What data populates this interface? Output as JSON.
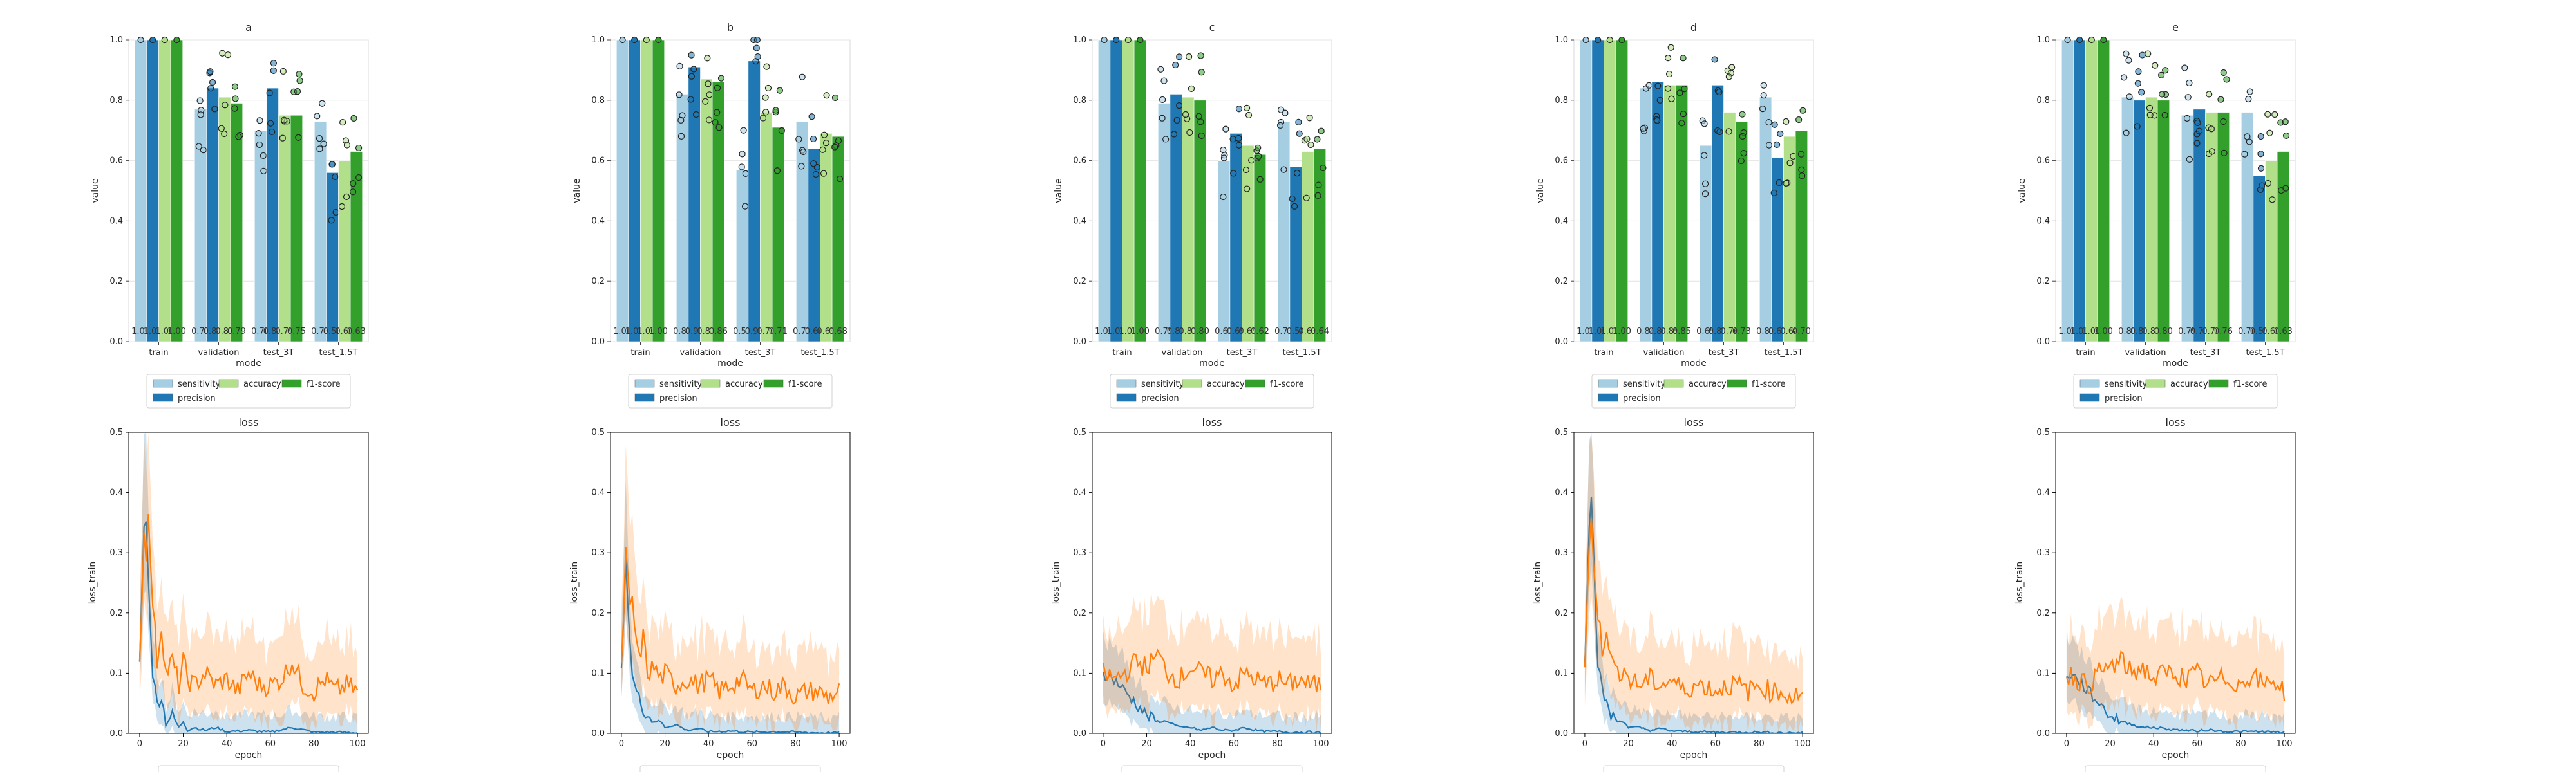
{
  "chart_data": [
    {
      "type": "bar",
      "title": "a",
      "xlabel": "mode",
      "ylabel": "value",
      "ylim": [
        0,
        1
      ],
      "categories": [
        "train",
        "validation",
        "test_3T",
        "test_1.5T"
      ],
      "series": [
        {
          "name": "sensitivity",
          "values": [
            1.0,
            0.77,
            0.7,
            0.73
          ]
        },
        {
          "name": "precision",
          "values": [
            1.0,
            0.84,
            0.84,
            0.56
          ]
        },
        {
          "name": "accuracy",
          "values": [
            1.0,
            0.81,
            0.75,
            0.6
          ]
        },
        {
          "name": "f1-score",
          "values": [
            1.0,
            0.79,
            0.75,
            0.63
          ]
        }
      ],
      "bar_labels": [
        [
          "1.00",
          "1.00",
          "1.00",
          "1.00"
        ],
        [
          "0.77",
          "0.84",
          "0.81",
          "0.79"
        ],
        [
          "0.70",
          "0.84",
          "0.75",
          "0.75"
        ],
        [
          "0.73",
          "0.56",
          "0.60",
          "0.63"
        ]
      ]
    },
    {
      "type": "bar",
      "title": "b",
      "xlabel": "mode",
      "ylabel": "value",
      "ylim": [
        0,
        1
      ],
      "categories": [
        "train",
        "validation",
        "test_3T",
        "test_1.5T"
      ],
      "series": [
        {
          "name": "sensitivity",
          "values": [
            1.0,
            0.82,
            0.57,
            0.73
          ]
        },
        {
          "name": "precision",
          "values": [
            1.0,
            0.91,
            0.93,
            0.64
          ]
        },
        {
          "name": "accuracy",
          "values": [
            1.0,
            0.87,
            0.76,
            0.69
          ]
        },
        {
          "name": "f1-score",
          "values": [
            1.0,
            0.86,
            0.71,
            0.68
          ]
        }
      ],
      "bar_labels": [
        [
          "1.00",
          "1.00",
          "1.00",
          "1.00"
        ],
        [
          "0.82",
          "0.91",
          "0.87",
          "0.86"
        ],
        [
          "0.57",
          "0.93",
          "0.76",
          "0.71"
        ],
        [
          "0.73",
          "0.64",
          "0.69",
          "0.68"
        ]
      ]
    },
    {
      "type": "bar",
      "title": "c",
      "xlabel": "mode",
      "ylabel": "value",
      "ylim": [
        0,
        1
      ],
      "categories": [
        "train",
        "validation",
        "test_3T",
        "test_1.5T"
      ],
      "series": [
        {
          "name": "sensitivity",
          "values": [
            1.0,
            0.79,
            0.6,
            0.73
          ]
        },
        {
          "name": "precision",
          "values": [
            1.0,
            0.82,
            0.69,
            0.58
          ]
        },
        {
          "name": "accuracy",
          "values": [
            1.0,
            0.81,
            0.65,
            0.63
          ]
        },
        {
          "name": "f1-score",
          "values": [
            1.0,
            0.8,
            0.62,
            0.64
          ]
        }
      ],
      "bar_labels": [
        [
          "1.00",
          "1.00",
          "1.00",
          "1.00"
        ],
        [
          "0.79",
          "0.82",
          "0.81",
          "0.80"
        ],
        [
          "0.60",
          "0.69",
          "0.65",
          "0.62"
        ],
        [
          "0.73",
          "0.58",
          "0.63",
          "0.64"
        ]
      ]
    },
    {
      "type": "bar",
      "title": "d",
      "xlabel": "mode",
      "ylabel": "value",
      "ylim": [
        0,
        1
      ],
      "categories": [
        "train",
        "validation",
        "test_3T",
        "test_1.5T"
      ],
      "series": [
        {
          "name": "sensitivity",
          "values": [
            1.0,
            0.84,
            0.65,
            0.81
          ]
        },
        {
          "name": "precision",
          "values": [
            1.0,
            0.86,
            0.85,
            0.61
          ]
        },
        {
          "name": "accuracy",
          "values": [
            1.0,
            0.85,
            0.76,
            0.68
          ]
        },
        {
          "name": "f1-score",
          "values": [
            1.0,
            0.85,
            0.73,
            0.7
          ]
        }
      ],
      "bar_labels": [
        [
          "1.00",
          "1.00",
          "1.00",
          "1.00"
        ],
        [
          "0.84",
          "0.86",
          "0.85",
          "0.85"
        ],
        [
          "0.65",
          "0.85",
          "0.76",
          "0.73"
        ],
        [
          "0.81",
          "0.61",
          "0.68",
          "0.70"
        ]
      ]
    },
    {
      "type": "bar",
      "title": "e",
      "xlabel": "mode",
      "ylabel": "value",
      "ylim": [
        0,
        1
      ],
      "categories": [
        "train",
        "validation",
        "test_3T",
        "test_1.5T"
      ],
      "series": [
        {
          "name": "sensitivity",
          "values": [
            1.0,
            0.81,
            0.75,
            0.76
          ]
        },
        {
          "name": "precision",
          "values": [
            1.0,
            0.8,
            0.77,
            0.55
          ]
        },
        {
          "name": "accuracy",
          "values": [
            1.0,
            0.81,
            0.76,
            0.6
          ]
        },
        {
          "name": "f1-score",
          "values": [
            1.0,
            0.8,
            0.76,
            0.63
          ]
        }
      ],
      "bar_labels": [
        [
          "1.00",
          "1.00",
          "1.00",
          "1.00"
        ],
        [
          "0.81",
          "0.80",
          "0.81",
          "0.80"
        ],
        [
          "0.75",
          "0.77",
          "0.76",
          "0.76"
        ],
        [
          "0.76",
          "0.55",
          "0.60",
          "0.63"
        ]
      ]
    },
    {
      "type": "line",
      "title": "loss",
      "xlabel": "epoch",
      "ylabel": "loss_train",
      "ylim": [
        0,
        0.5
      ],
      "xlim": [
        -5,
        105
      ],
      "series": [
        {
          "name": "",
          "color": "#1f77b4",
          "x": [
            0,
            2,
            3,
            4,
            5,
            6,
            8,
            10,
            12,
            15,
            18,
            20,
            22,
            25,
            30,
            35,
            40,
            50,
            60,
            70,
            80,
            90,
            100
          ],
          "y": [
            0.12,
            0.34,
            0.36,
            0.25,
            0.18,
            0.1,
            0.05,
            0.06,
            0.02,
            0.03,
            0.01,
            0.02,
            0.005,
            0.01,
            0.005,
            0.01,
            0.003,
            0.005,
            0.002,
            0.01,
            0.002,
            0.002,
            0.001
          ]
        },
        {
          "name": "",
          "color": "#ff7f0e",
          "x": [
            0,
            2,
            3,
            4,
            5,
            6,
            8,
            10,
            12,
            15,
            18,
            20,
            22,
            25,
            30,
            35,
            40,
            45,
            50,
            55,
            60,
            65,
            70,
            75,
            80,
            85,
            90,
            95,
            100
          ],
          "y": [
            0.12,
            0.33,
            0.3,
            0.38,
            0.27,
            0.22,
            0.12,
            0.18,
            0.1,
            0.12,
            0.08,
            0.12,
            0.09,
            0.08,
            0.1,
            0.08,
            0.09,
            0.07,
            0.1,
            0.08,
            0.08,
            0.09,
            0.12,
            0.08,
            0.07,
            0.09,
            0.07,
            0.08,
            0.07
          ]
        }
      ]
    },
    {
      "type": "line",
      "title": "loss",
      "xlabel": "epoch",
      "ylabel": "loss_train",
      "ylim": [
        0,
        0.5
      ],
      "xlim": [
        -5,
        105
      ],
      "series": [
        {
          "name": "",
          "color": "#1f77b4",
          "x": [
            0,
            2,
            3,
            4,
            5,
            6,
            8,
            10,
            12,
            15,
            18,
            20,
            25,
            30,
            35,
            40,
            50,
            60,
            70,
            80,
            90,
            100
          ],
          "y": [
            0.1,
            0.28,
            0.22,
            0.15,
            0.1,
            0.08,
            0.06,
            0.04,
            0.03,
            0.02,
            0.02,
            0.01,
            0.015,
            0.005,
            0.008,
            0.003,
            0.004,
            0.002,
            0.003,
            0.002,
            0.001,
            0.001
          ]
        },
        {
          "name": "",
          "color": "#ff7f0e",
          "x": [
            0,
            2,
            3,
            4,
            5,
            6,
            8,
            10,
            12,
            15,
            18,
            20,
            25,
            30,
            35,
            40,
            45,
            50,
            55,
            60,
            65,
            70,
            75,
            80,
            85,
            90,
            95,
            100
          ],
          "y": [
            0.1,
            0.3,
            0.25,
            0.2,
            0.22,
            0.18,
            0.12,
            0.16,
            0.1,
            0.11,
            0.09,
            0.1,
            0.08,
            0.09,
            0.08,
            0.09,
            0.07,
            0.08,
            0.09,
            0.07,
            0.08,
            0.07,
            0.08,
            0.06,
            0.07,
            0.07,
            0.06,
            0.07
          ]
        }
      ]
    },
    {
      "type": "line",
      "title": "loss",
      "xlabel": "epoch",
      "ylabel": "loss_train",
      "ylim": [
        0,
        0.5
      ],
      "xlim": [
        -5,
        105
      ],
      "series": [
        {
          "name": "",
          "color": "#1f77b4",
          "x": [
            0,
            5,
            10,
            15,
            20,
            25,
            30,
            35,
            40,
            45,
            50,
            55,
            60,
            65,
            70,
            75,
            80,
            85,
            90,
            95,
            100
          ],
          "y": [
            0.1,
            0.09,
            0.07,
            0.05,
            0.03,
            0.02,
            0.02,
            0.01,
            0.01,
            0.005,
            0.01,
            0.005,
            0.005,
            0.01,
            0.005,
            0.003,
            0.003,
            0.002,
            0.002,
            0.002,
            0.001
          ]
        },
        {
          "name": "",
          "color": "#ff7f0e",
          "x": [
            0,
            5,
            10,
            15,
            20,
            25,
            30,
            35,
            40,
            45,
            50,
            55,
            60,
            65,
            70,
            75,
            80,
            85,
            90,
            95,
            100
          ],
          "y": [
            0.1,
            0.09,
            0.1,
            0.12,
            0.11,
            0.13,
            0.1,
            0.09,
            0.11,
            0.1,
            0.09,
            0.1,
            0.08,
            0.1,
            0.09,
            0.08,
            0.09,
            0.08,
            0.09,
            0.08,
            0.08
          ]
        }
      ]
    },
    {
      "type": "line",
      "title": "loss",
      "xlabel": "epoch",
      "ylabel": "loss_train",
      "ylim": [
        0,
        0.5
      ],
      "xlim": [
        -5,
        105
      ],
      "series": [
        {
          "name": "",
          "color": "#1f77b4",
          "x": [
            0,
            2,
            3,
            4,
            5,
            6,
            8,
            10,
            12,
            15,
            18,
            20,
            25,
            30,
            35,
            40,
            50,
            60,
            70,
            80,
            90,
            100
          ],
          "y": [
            0.12,
            0.35,
            0.4,
            0.3,
            0.2,
            0.12,
            0.07,
            0.05,
            0.03,
            0.02,
            0.02,
            0.01,
            0.01,
            0.005,
            0.008,
            0.004,
            0.003,
            0.002,
            0.002,
            0.002,
            0.001,
            0.001
          ]
        },
        {
          "name": "",
          "color": "#ff7f0e",
          "x": [
            0,
            2,
            3,
            4,
            5,
            6,
            8,
            10,
            12,
            15,
            18,
            20,
            25,
            30,
            35,
            40,
            45,
            50,
            55,
            60,
            65,
            70,
            75,
            80,
            85,
            90,
            95,
            100
          ],
          "y": [
            0.12,
            0.3,
            0.35,
            0.28,
            0.25,
            0.2,
            0.14,
            0.18,
            0.12,
            0.1,
            0.11,
            0.09,
            0.08,
            0.09,
            0.08,
            0.09,
            0.07,
            0.08,
            0.08,
            0.07,
            0.08,
            0.08,
            0.07,
            0.08,
            0.07,
            0.07,
            0.06,
            0.07
          ]
        }
      ]
    },
    {
      "type": "line",
      "title": "loss",
      "xlabel": "epoch",
      "ylabel": "loss_train",
      "ylim": [
        0,
        0.5
      ],
      "xlim": [
        -5,
        105
      ],
      "series": [
        {
          "name": "",
          "color": "#1f77b4",
          "x": [
            0,
            5,
            10,
            15,
            20,
            25,
            30,
            35,
            40,
            45,
            50,
            55,
            60,
            65,
            70,
            75,
            80,
            85,
            90,
            95,
            100
          ],
          "y": [
            0.1,
            0.09,
            0.07,
            0.05,
            0.03,
            0.02,
            0.015,
            0.01,
            0.01,
            0.008,
            0.006,
            0.005,
            0.004,
            0.006,
            0.004,
            0.003,
            0.003,
            0.003,
            0.003,
            0.002,
            0.002
          ]
        },
        {
          "name": "",
          "color": "#ff7f0e",
          "x": [
            0,
            5,
            10,
            15,
            20,
            25,
            30,
            35,
            40,
            45,
            50,
            55,
            60,
            65,
            70,
            75,
            80,
            85,
            90,
            95,
            100
          ],
          "y": [
            0.1,
            0.09,
            0.08,
            0.1,
            0.11,
            0.12,
            0.1,
            0.11,
            0.09,
            0.1,
            0.1,
            0.09,
            0.1,
            0.08,
            0.09,
            0.09,
            0.08,
            0.1,
            0.08,
            0.09,
            0.07
          ]
        }
      ]
    }
  ],
  "colors": {
    "sensitivity": "#a6cee3",
    "precision": "#1f78b4",
    "accuracy": "#b2df8a",
    "f1-score": "#33a02c",
    "loss_blue": "#1f77b4",
    "loss_orange": "#ff7f0e"
  }
}
